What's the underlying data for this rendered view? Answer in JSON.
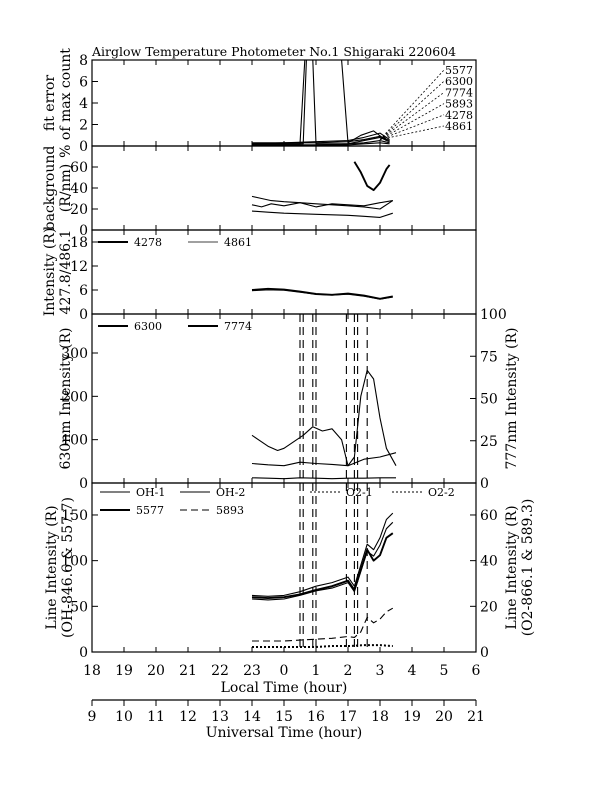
{
  "chart_data": {
    "type": "line",
    "title": "Airglow Temperature Photometer No.1   Shigaraki   220604",
    "x_axis_local": {
      "label": "Local Time (hour)",
      "ticks": [
        "18",
        "19",
        "20",
        "21",
        "22",
        "23",
        "0",
        "1",
        "2",
        "3",
        "4",
        "5",
        "6"
      ],
      "range_hours": [
        18,
        30
      ]
    },
    "x_axis_ut": {
      "label": "Universal Time (hour)",
      "ticks": [
        "9",
        "10",
        "11",
        "12",
        "13",
        "14",
        "15",
        "16",
        "17",
        "18",
        "19",
        "20",
        "21"
      ],
      "range_hours": [
        9,
        21
      ]
    },
    "panels": [
      {
        "id": "fit_error",
        "ylabel_lines": [
          "fit error",
          "% of max count"
        ],
        "ylim": [
          0,
          8
        ],
        "yticks": [
          "0",
          "2",
          "4",
          "6",
          "8"
        ],
        "labels_right": [
          "5577",
          "6300",
          "7774",
          "5893",
          "4278",
          "4861"
        ],
        "series": [
          {
            "name": "5577",
            "style": "solid",
            "x": [
              23.0,
              24.0,
              24.5,
              24.65,
              24.8,
              25.2,
              25.8,
              26.0,
              26.4,
              26.8,
              27.2
            ],
            "y": [
              0.2,
              0.2,
              0.2,
              8,
              8,
              8,
              8,
              0.3,
              1.0,
              1.4,
              0.5
            ]
          },
          {
            "name": "6300",
            "style": "solid",
            "x": [
              23.0,
              24.0,
              25.0,
              26.0,
              26.5,
              27.0,
              27.3
            ],
            "y": [
              0.3,
              0.3,
              0.4,
              0.5,
              0.8,
              1.2,
              0.6
            ]
          },
          {
            "name": "7774",
            "style": "solid",
            "x": [
              23.0,
              24.0,
              25.0,
              26.0,
              26.5,
              27.0,
              27.3
            ],
            "y": [
              0.2,
              0.3,
              0.3,
              0.4,
              0.6,
              0.9,
              0.5
            ]
          },
          {
            "name": "5893",
            "style": "solid",
            "x": [
              23.0,
              24.0,
              24.6,
              24.7,
              24.9,
              25.0,
              26.0,
              26.5,
              27.0,
              27.3
            ],
            "y": [
              0.2,
              0.2,
              0.2,
              8,
              8,
              0.2,
              0.2,
              0.5,
              0.8,
              0.4
            ]
          },
          {
            "name": "4278",
            "style": "solid",
            "x": [
              23.0,
              24.0,
              25.0,
              26.0,
              26.5,
              27.0,
              27.3
            ],
            "y": [
              0.1,
              0.1,
              0.1,
              0.2,
              0.3,
              0.5,
              0.3
            ]
          },
          {
            "name": "4861",
            "style": "solid",
            "x": [
              23.0,
              24.0,
              25.0,
              26.0,
              26.5,
              27.0,
              27.3
            ],
            "y": [
              0.1,
              0.1,
              0.1,
              0.1,
              0.2,
              0.3,
              0.2
            ]
          }
        ]
      },
      {
        "id": "background",
        "ylabel_lines": [
          "background",
          "(R/nm)"
        ],
        "ylim": [
          0,
          80
        ],
        "yticks": [
          "0",
          "20",
          "40",
          "60"
        ],
        "series": [
          {
            "name": "bg_a",
            "style": "solid",
            "x": [
              23.0,
              23.3,
              23.6,
              24.0,
              24.5,
              25.0,
              25.5,
              26.0,
              26.5,
              27.0,
              27.4
            ],
            "y": [
              32,
              30,
              28,
              27,
              26,
              25,
              24,
              23,
              22,
              20,
              28
            ]
          },
          {
            "name": "bg_b",
            "style": "solid",
            "x": [
              23.0,
              23.3,
              23.6,
              24.0,
              24.5,
              25.0,
              25.5,
              26.0,
              26.5,
              27.0,
              27.4
            ],
            "y": [
              24,
              22,
              25,
              23,
              26,
              22,
              25,
              24,
              23,
              26,
              28
            ]
          },
          {
            "name": "bg_c",
            "style": "solid",
            "x": [
              23.0,
              23.5,
              24.0,
              25.0,
              26.0,
              26.5,
              27.0,
              27.4
            ],
            "y": [
              18,
              17,
              16,
              15,
              14,
              13,
              12,
              16
            ]
          },
          {
            "name": "bg_d",
            "style": "thick",
            "x": [
              26.2,
              26.4,
              26.6,
              26.8,
              27.0,
              27.2,
              27.3
            ],
            "y": [
              65,
              55,
              42,
              38,
              45,
              58,
              62
            ]
          }
        ]
      },
      {
        "id": "blue_lines",
        "ylabel_lines": [
          "Intensity (R)",
          "427.8/486.1"
        ],
        "ylim": [
          0,
          21
        ],
        "yticks": [
          "0",
          "6",
          "12",
          "18"
        ],
        "legend": [
          {
            "name": "4278",
            "style": "solid-thick"
          },
          {
            "name": "4861",
            "style": "solid-thin"
          }
        ],
        "series": [
          {
            "name": "4278",
            "style": "solid-thick",
            "x": [
              23.0,
              23.5,
              24.0,
              24.5,
              25.0,
              25.5,
              26.0,
              26.5,
              27.0,
              27.4
            ],
            "y": [
              6.0,
              6.3,
              6.1,
              5.6,
              5.0,
              4.8,
              5.1,
              4.6,
              3.8,
              4.4
            ]
          },
          {
            "name": "4861",
            "style": "solid-thin",
            "x": [
              23.0,
              23.5,
              24.0,
              24.5,
              25.0,
              25.5,
              26.0,
              26.5,
              27.0,
              27.4
            ],
            "y": [
              5.8,
              6.0,
              5.9,
              5.4,
              4.9,
              4.7,
              4.9,
              4.4,
              3.7,
              4.2
            ]
          }
        ]
      },
      {
        "id": "red_lines",
        "ylabel_left": "630nm Intensity (R)",
        "ylabel_right": "777nm Intensity (R)",
        "ylim_left": [
          0,
          390
        ],
        "ylim_right": [
          0,
          100
        ],
        "yticks_left": [
          "0",
          "100",
          "200",
          "300"
        ],
        "yticks_right": [
          "0",
          "25",
          "50",
          "75",
          "100"
        ],
        "legend": [
          {
            "name": "6300",
            "style": "solid-thick"
          },
          {
            "name": "7774",
            "style": "solid-thick"
          }
        ],
        "series": [
          {
            "name": "6300",
            "style": "solid",
            "x": [
              23.0,
              23.2,
              23.5,
              23.8,
              24.0,
              24.3,
              24.6,
              24.9,
              25.2,
              25.5,
              25.8,
              26.0,
              26.2,
              26.4,
              26.6,
              26.8,
              27.0,
              27.2,
              27.5
            ],
            "y": [
              110,
              100,
              85,
              75,
              80,
              95,
              110,
              130,
              120,
              125,
              100,
              40,
              60,
              200,
              260,
              240,
              150,
              80,
              40
            ]
          },
          {
            "name": "7774",
            "style": "solid",
            "x": [
              23.0,
              23.5,
              24.0,
              24.5,
              25.0,
              25.5,
              26.0,
              26.5,
              27.0,
              27.5
            ],
            "y": [
              12,
              11,
              10,
              12,
              11,
              10,
              11,
              11,
              12,
              12
            ]
          },
          {
            "name": "6300_b",
            "style": "solid",
            "x": [
              23.0,
              23.5,
              24.0,
              24.5,
              25.0,
              25.5,
              26.0,
              26.5,
              27.0,
              27.5
            ],
            "y": [
              45,
              42,
              40,
              48,
              45,
              43,
              40,
              55,
              60,
              70
            ]
          }
        ]
      },
      {
        "id": "oh_o2_lines",
        "ylabel_left_lines": [
          "Line Intensity (R)",
          "(OH-846.6 & 557.7)"
        ],
        "ylabel_right_lines": [
          "Line Intensity (R)",
          "(O2-866.1 & 589.3)"
        ],
        "ylim_left": [
          0,
          185
        ],
        "ylim_right": [
          0,
          74
        ],
        "yticks_left": [
          "0",
          "50",
          "100",
          "150"
        ],
        "yticks_right": [
          "0",
          "20",
          "40",
          "60"
        ],
        "legend": [
          {
            "name": "OH-1",
            "style": "solid"
          },
          {
            "name": "OH-2",
            "style": "solid"
          },
          {
            "name": "O2-1",
            "style": "dotted"
          },
          {
            "name": "O2-2",
            "style": "dotted"
          },
          {
            "name": "5577",
            "style": "solid-thick"
          },
          {
            "name": "5893",
            "style": "dashed"
          }
        ],
        "series": [
          {
            "name": "OH-1",
            "style": "solid",
            "x": [
              23.0,
              23.5,
              24.0,
              24.5,
              25.0,
              25.5,
              26.0,
              26.2,
              26.4,
              26.6,
              26.8,
              27.0,
              27.2,
              27.4
            ],
            "y": [
              62,
              61,
              62,
              66,
              72,
              76,
              82,
              72,
              95,
              118,
              112,
              125,
              145,
              152
            ]
          },
          {
            "name": "OH-2",
            "style": "solid",
            "x": [
              23.0,
              23.5,
              24.0,
              24.5,
              25.0,
              25.5,
              26.0,
              26.2,
              26.4,
              26.6,
              26.8,
              27.0,
              27.2,
              27.4
            ],
            "y": [
              58,
              57,
              58,
              62,
              67,
              70,
              76,
              66,
              88,
              110,
              105,
              117,
              135,
              142
            ]
          },
          {
            "name": "5577",
            "style": "solid-thick",
            "x": [
              23.0,
              23.5,
              24.0,
              24.5,
              25.0,
              25.5,
              26.0,
              26.2,
              26.4,
              26.6,
              26.8,
              27.0,
              27.2,
              27.4
            ],
            "y": [
              60,
              59,
              60,
              63,
              68,
              72,
              78,
              68,
              90,
              112,
              100,
              106,
              125,
              130
            ]
          },
          {
            "name": "5893",
            "style": "dashed",
            "x": [
              23.0,
              23.5,
              24.0,
              24.5,
              25.0,
              25.5,
              26.0,
              26.2,
              26.4,
              26.6,
              26.8,
              27.0,
              27.2,
              27.4
            ],
            "y": [
              12,
              12,
              12,
              13,
              14,
              15,
              17,
              16,
              22,
              38,
              32,
              36,
              44,
              48
            ]
          },
          {
            "name": "O2-1",
            "style": "dotted",
            "x": [
              23.0,
              23.5,
              24.0,
              24.5,
              25.0,
              25.5,
              26.0,
              26.5,
              27.0,
              27.4
            ],
            "y": [
              6,
              6,
              6,
              6,
              6,
              7,
              7,
              8,
              8,
              7
            ]
          },
          {
            "name": "O2-2",
            "style": "dotted",
            "x": [
              23.0,
              23.5,
              24.0,
              24.5,
              25.0,
              25.5,
              26.0,
              26.5,
              27.0,
              27.4
            ],
            "y": [
              5,
              5,
              5,
              5,
              5,
              6,
              6,
              7,
              7,
              6
            ]
          }
        ]
      }
    ],
    "vertical_dashed_lines_local_hours": [
      24.5,
      24.6,
      24.9,
      25.0,
      25.95,
      26.2,
      26.3,
      26.6
    ]
  }
}
